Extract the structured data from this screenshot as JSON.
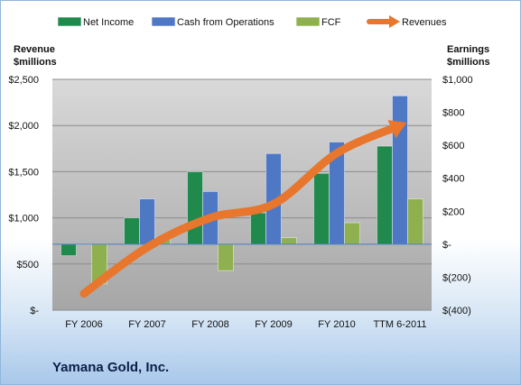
{
  "company_name": "Yamana Gold, Inc.",
  "colors": {
    "net_income": "#1f8a4c",
    "cash_from_operations": "#4f78c4",
    "fcf": "#8fb04e",
    "revenues": "#e8762c"
  },
  "chart_data": {
    "type": "bar",
    "title": "",
    "categories": [
      "FY 2006",
      "FY 2007",
      "FY 2008",
      "FY 2009",
      "FY 2010",
      "TTM 6-2011"
    ],
    "left_axis": {
      "label_line1": "Revenue",
      "label_line2": "$millions",
      "ticks": [
        "$-",
        "$500",
        "$1,000",
        "$1,500",
        "$2,000",
        "$2,500"
      ],
      "ylim": [
        0,
        2500
      ]
    },
    "right_axis": {
      "label_line1": "Earnings",
      "label_line2": "$millions",
      "ticks": [
        "$(400)",
        "$(200)",
        "$-",
        "$200",
        "$400",
        "$600",
        "$800",
        "$1,000"
      ],
      "ylim": [
        -400,
        1000
      ]
    },
    "legend_position": "top",
    "series": [
      {
        "name": "Net Income",
        "type": "bar",
        "axis": "right",
        "values": [
          -70,
          160,
          440,
          190,
          430,
          595
        ]
      },
      {
        "name": "Cash from Operations",
        "type": "bar",
        "axis": "right",
        "values": [
          0,
          275,
          320,
          550,
          620,
          900
        ]
      },
      {
        "name": "FCF",
        "type": "bar",
        "axis": "right",
        "values": [
          -240,
          40,
          -160,
          40,
          130,
          275
        ]
      },
      {
        "name": "Revenues",
        "type": "line",
        "axis": "left",
        "values": [
          180,
          680,
          1000,
          1150,
          1700,
          2000
        ]
      }
    ]
  }
}
